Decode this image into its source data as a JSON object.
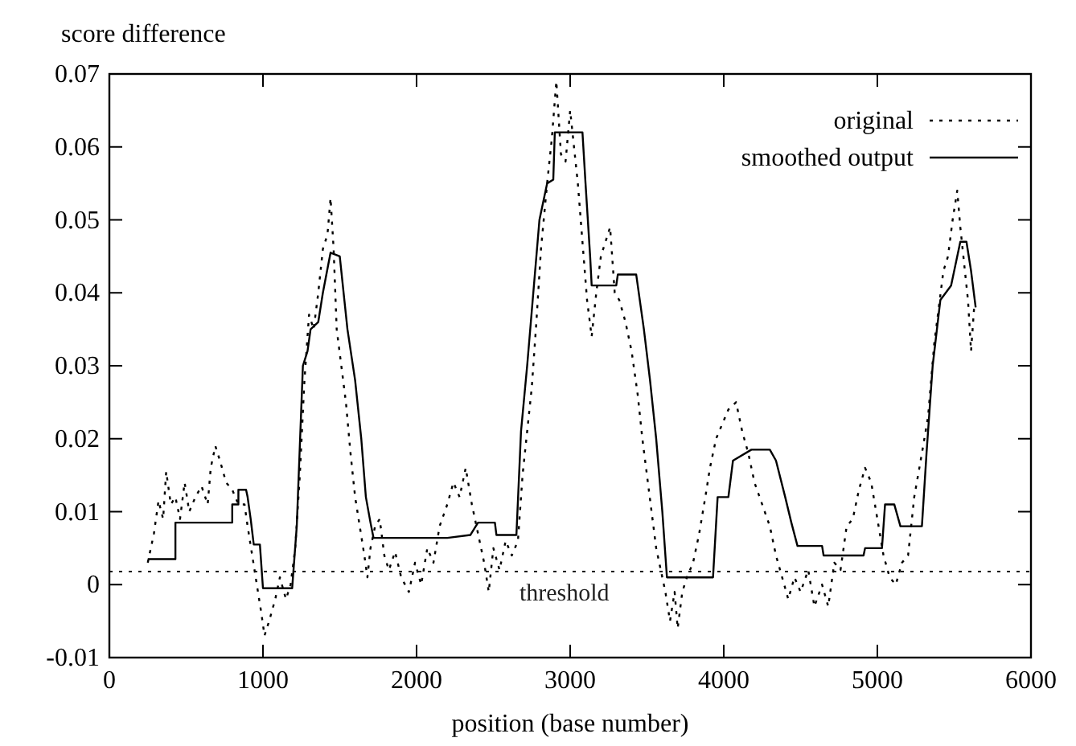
{
  "chart_data": {
    "type": "line",
    "xlabel": "position (base number)",
    "ylabel": "score difference",
    "xlim": [
      0,
      6000
    ],
    "xticks": [
      0,
      1000,
      2000,
      3000,
      4000,
      5000,
      6000
    ],
    "ylim": [
      -0.01,
      0.07
    ],
    "yticks": [
      -0.01,
      0,
      0.01,
      0.02,
      0.03,
      0.04,
      0.05,
      0.06,
      0.07
    ],
    "grid": false,
    "legend": "top right",
    "marker": "none",
    "ref_lines": [
      {
        "axis": "y",
        "value": 0.0018,
        "label": "threshold",
        "color": "#000000",
        "line_style": "dotted"
      }
    ],
    "series": [
      {
        "name": "original",
        "color": "#000000",
        "line_style": "dotted",
        "x": [
          250,
          290,
          320,
          350,
          370,
          400,
          430,
          460,
          490,
          520,
          560,
          600,
          640,
          660,
          690,
          720,
          760,
          800,
          840,
          880,
          900,
          930,
          960,
          990,
          1010,
          1040,
          1080,
          1110,
          1150,
          1180,
          1210,
          1240,
          1270,
          1300,
          1330,
          1360,
          1390,
          1420,
          1440,
          1460,
          1480,
          1510,
          1540,
          1570,
          1600,
          1630,
          1660,
          1680,
          1700,
          1730,
          1760,
          1790,
          1820,
          1860,
          1900,
          1950,
          1990,
          2030,
          2070,
          2110,
          2150,
          2200,
          2240,
          2280,
          2320,
          2360,
          2400,
          2440,
          2470,
          2500,
          2540,
          2580,
          2620,
          2660,
          2690,
          2720,
          2750,
          2780,
          2810,
          2850,
          2880,
          2910,
          2940,
          2970,
          3000,
          3020,
          3050,
          3080,
          3110,
          3140,
          3170,
          3200,
          3230,
          3260,
          3290,
          3320,
          3360,
          3400,
          3440,
          3470,
          3500,
          3530,
          3560,
          3590,
          3620,
          3650,
          3680,
          3700,
          3730,
          3760,
          3800,
          3840,
          3880,
          3910,
          3950,
          3990,
          4030,
          4080,
          4120,
          4160,
          4200,
          4250,
          4300,
          4340,
          4380,
          4420,
          4460,
          4500,
          4550,
          4590,
          4640,
          4680,
          4720,
          4760,
          4800,
          4840,
          4880,
          4920,
          4960,
          5000,
          5040,
          5080,
          5120,
          5160,
          5200,
          5240,
          5290,
          5330,
          5370,
          5400,
          5430,
          5460,
          5490,
          5520,
          5540,
          5560,
          5590,
          5610,
          5630
        ],
        "values": [
          0.003,
          0.007,
          0.0115,
          0.009,
          0.0155,
          0.011,
          0.012,
          0.009,
          0.014,
          0.01,
          0.012,
          0.0135,
          0.011,
          0.016,
          0.019,
          0.017,
          0.014,
          0.013,
          0.011,
          0.011,
          0.008,
          0.004,
          0.0,
          -0.004,
          -0.007,
          -0.005,
          -0.002,
          0.001,
          -0.002,
          0.0,
          0.005,
          0.015,
          0.028,
          0.037,
          0.035,
          0.04,
          0.046,
          0.048,
          0.053,
          0.046,
          0.035,
          0.03,
          0.025,
          0.018,
          0.012,
          0.008,
          0.004,
          0.001,
          0.005,
          0.008,
          0.009,
          0.004,
          0.002,
          0.0045,
          0.001,
          -0.001,
          0.003,
          0.0,
          0.005,
          0.003,
          0.008,
          0.011,
          0.014,
          0.012,
          0.016,
          0.011,
          0.007,
          0.003,
          -0.001,
          0.005,
          0.002,
          0.006,
          0.004,
          0.006,
          0.015,
          0.021,
          0.027,
          0.036,
          0.046,
          0.055,
          0.061,
          0.069,
          0.059,
          0.058,
          0.065,
          0.061,
          0.055,
          0.047,
          0.039,
          0.034,
          0.04,
          0.045,
          0.047,
          0.049,
          0.04,
          0.039,
          0.036,
          0.032,
          0.026,
          0.02,
          0.015,
          0.01,
          0.005,
          0.002,
          -0.001,
          -0.005,
          -0.001,
          -0.006,
          -0.001,
          0.001,
          0.003,
          0.007,
          0.012,
          0.016,
          0.02,
          0.022,
          0.024,
          0.025,
          0.021,
          0.018,
          0.014,
          0.011,
          0.008,
          0.004,
          0.001,
          -0.002,
          0.001,
          -0.001,
          0.002,
          -0.003,
          0.0,
          -0.003,
          0.003,
          0.002,
          0.008,
          0.009,
          0.013,
          0.016,
          0.014,
          0.009,
          0.004,
          0.001,
          0.0,
          0.003,
          0.004,
          0.012,
          0.018,
          0.023,
          0.033,
          0.038,
          0.043,
          0.045,
          0.05,
          0.054,
          0.049,
          0.045,
          0.039,
          0.032,
          0.038
        ]
      },
      {
        "name": "smoothed output",
        "color": "#000000",
        "line_style": "solid",
        "x": [
          250,
          430,
          430,
          800,
          800,
          840,
          840,
          890,
          900,
          920,
          940,
          980,
          1000,
          1190,
          1220,
          1260,
          1290,
          1310,
          1360,
          1390,
          1440,
          1500,
          1530,
          1550,
          1600,
          1640,
          1670,
          1700,
          1720,
          2200,
          2350,
          2400,
          2510,
          2520,
          2650,
          2680,
          2720,
          2760,
          2800,
          2850,
          2890,
          2900,
          3080,
          3100,
          3130,
          3140,
          3300,
          3310,
          3430,
          3480,
          3520,
          3560,
          3600,
          3630,
          3930,
          3960,
          4030,
          4060,
          4180,
          4300,
          4340,
          4400,
          4440,
          4480,
          4640,
          4650,
          4910,
          4920,
          5030,
          5050,
          5110,
          5150,
          5290,
          5320,
          5360,
          5410,
          5480,
          5500,
          5540,
          5580,
          5610,
          5640
        ],
        "values": [
          0.0035,
          0.0035,
          0.0085,
          0.0085,
          0.011,
          0.011,
          0.013,
          0.013,
          0.012,
          0.009,
          0.0055,
          0.0055,
          -0.0005,
          -0.0005,
          0.008,
          0.03,
          0.032,
          0.035,
          0.036,
          0.04,
          0.0455,
          0.045,
          0.039,
          0.035,
          0.028,
          0.02,
          0.012,
          0.0085,
          0.0064,
          0.0064,
          0.0068,
          0.0085,
          0.0085,
          0.0068,
          0.0068,
          0.021,
          0.03,
          0.04,
          0.05,
          0.055,
          0.0555,
          0.062,
          0.062,
          0.055,
          0.045,
          0.041,
          0.041,
          0.0425,
          0.0425,
          0.035,
          0.028,
          0.02,
          0.01,
          0.001,
          0.001,
          0.012,
          0.012,
          0.017,
          0.0185,
          0.0185,
          0.017,
          0.012,
          0.0085,
          0.0053,
          0.0053,
          0.004,
          0.004,
          0.005,
          0.005,
          0.011,
          0.011,
          0.008,
          0.008,
          0.018,
          0.03,
          0.039,
          0.041,
          0.043,
          0.047,
          0.047,
          0.043,
          0.038
        ]
      }
    ]
  }
}
